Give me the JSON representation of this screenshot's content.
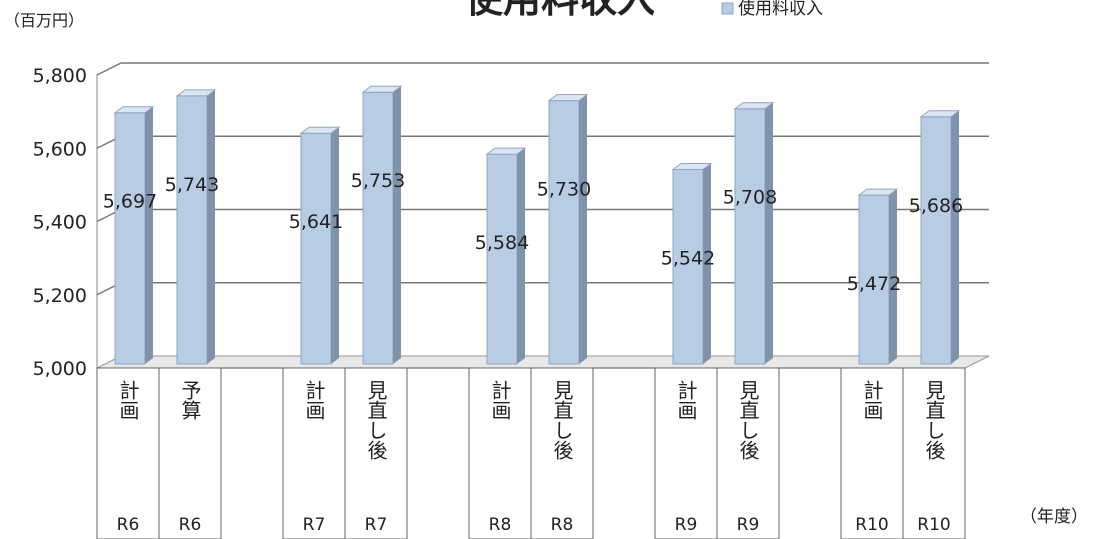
{
  "chart_data": {
    "type": "bar3d",
    "title": "使用料収入",
    "y_axis_label": "（百万円）",
    "x_axis_label": "（年度）",
    "categories": [
      "計画",
      "予算",
      null,
      "計画",
      "見直し後",
      null,
      "計画",
      "見直し後",
      null,
      "計画",
      "見直し後",
      null,
      "計画",
      "見直し後"
    ],
    "groups": [
      "R6",
      "R6",
      null,
      "R7",
      "R7",
      null,
      "R8",
      "R8",
      null,
      "R9",
      "R9",
      null,
      "R10",
      "R10"
    ],
    "series": [
      {
        "name": "使用料収入",
        "color": "#b8cce4",
        "values": [
          5697,
          5743,
          null,
          5641,
          5753,
          null,
          5584,
          5730,
          null,
          5542,
          5708,
          null,
          5472,
          5686
        ],
        "value_labels": [
          "5,697",
          "5,743",
          null,
          "5,641",
          "5,753",
          null,
          "5,584",
          "5,730",
          null,
          "5,542",
          "5,708",
          null,
          "5,472",
          "5,686"
        ]
      }
    ],
    "ylim": [
      5000,
      5800
    ],
    "yticks": [
      {
        "value": 5000,
        "label": "5,000"
      },
      {
        "value": 5200,
        "label": "5,200"
      },
      {
        "value": 5400,
        "label": "5,400"
      },
      {
        "value": 5600,
        "label": "5,600"
      },
      {
        "value": 5800,
        "label": "5,800"
      }
    ],
    "grid": true,
    "legend": "top"
  }
}
